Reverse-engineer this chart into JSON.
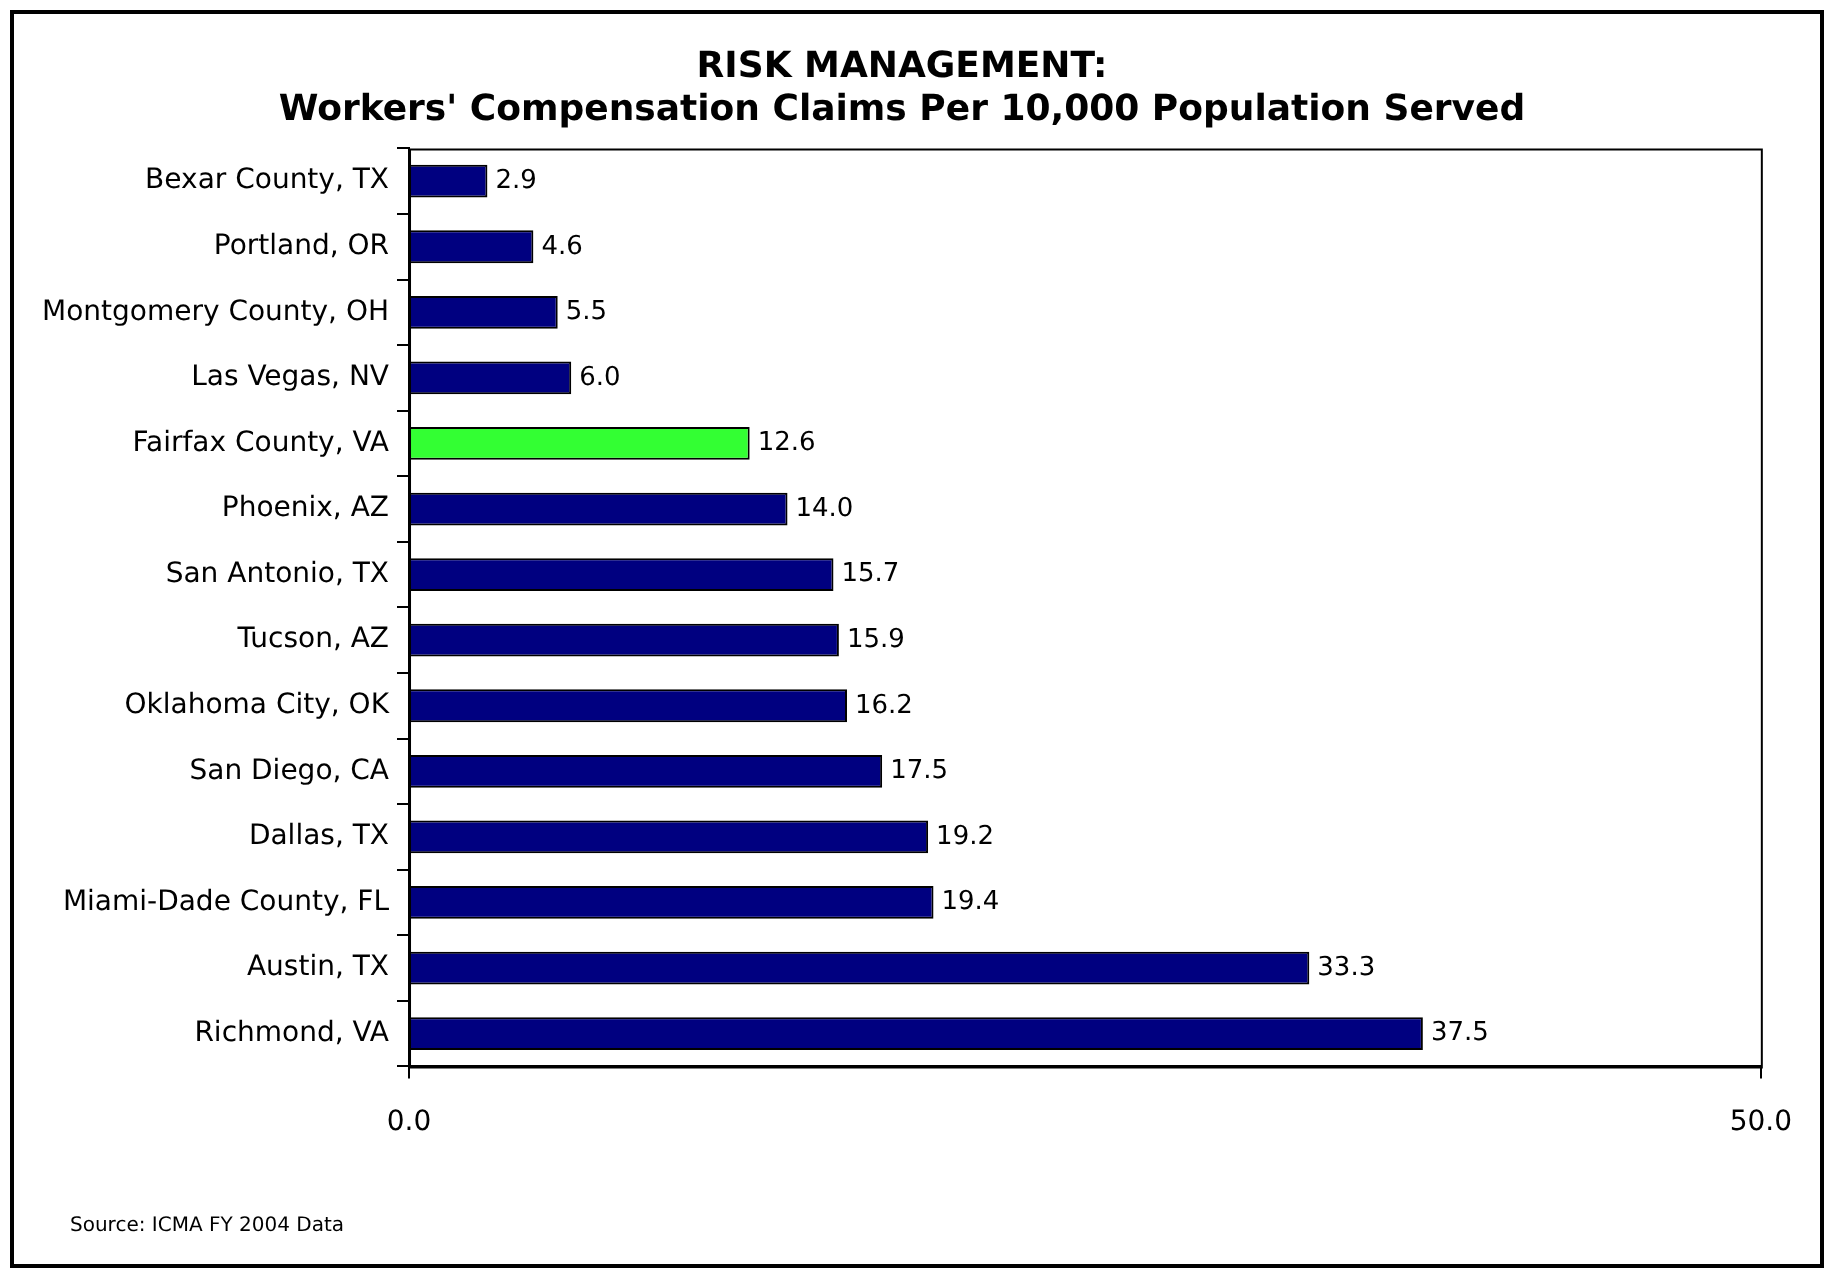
{
  "chart_data": {
    "type": "bar",
    "orientation": "horizontal",
    "title": "RISK MANAGEMENT:\nWorkers' Compensation Claims Per 10,000 Population Served",
    "categories": [
      "Bexar County, TX",
      "Portland, OR",
      "Montgomery County, OH",
      "Las Vegas, NV",
      "Fairfax County, VA",
      "Phoenix, AZ",
      "San Antonio, TX",
      "Tucson, AZ",
      "Oklahoma City, OK",
      "San Diego, CA",
      "Dallas, TX",
      "Miami-Dade County, FL",
      "Austin, TX",
      "Richmond, VA"
    ],
    "values": [
      2.9,
      4.6,
      5.5,
      6.0,
      12.6,
      14.0,
      15.7,
      15.9,
      16.2,
      17.5,
      19.2,
      19.4,
      33.3,
      37.5
    ],
    "value_labels": [
      "2.9",
      "4.6",
      "5.5",
      "6.0",
      "12.6",
      "14.0",
      "15.7",
      "15.9",
      "16.2",
      "17.5",
      "19.2",
      "19.4",
      "33.3",
      "37.5"
    ],
    "colors": [
      "#000080",
      "#000080",
      "#000080",
      "#000080",
      "#33ff33",
      "#000080",
      "#000080",
      "#000080",
      "#000080",
      "#000080",
      "#000080",
      "#000080",
      "#000080",
      "#000080"
    ],
    "xlim": [
      0,
      50
    ],
    "xticks": [
      {
        "value": 0,
        "label": "0.0"
      },
      {
        "value": 50,
        "label": "50.0"
      }
    ],
    "grid": false,
    "legend": false,
    "annotations": [
      "Source: ICMA FY 2004 Data"
    ]
  }
}
